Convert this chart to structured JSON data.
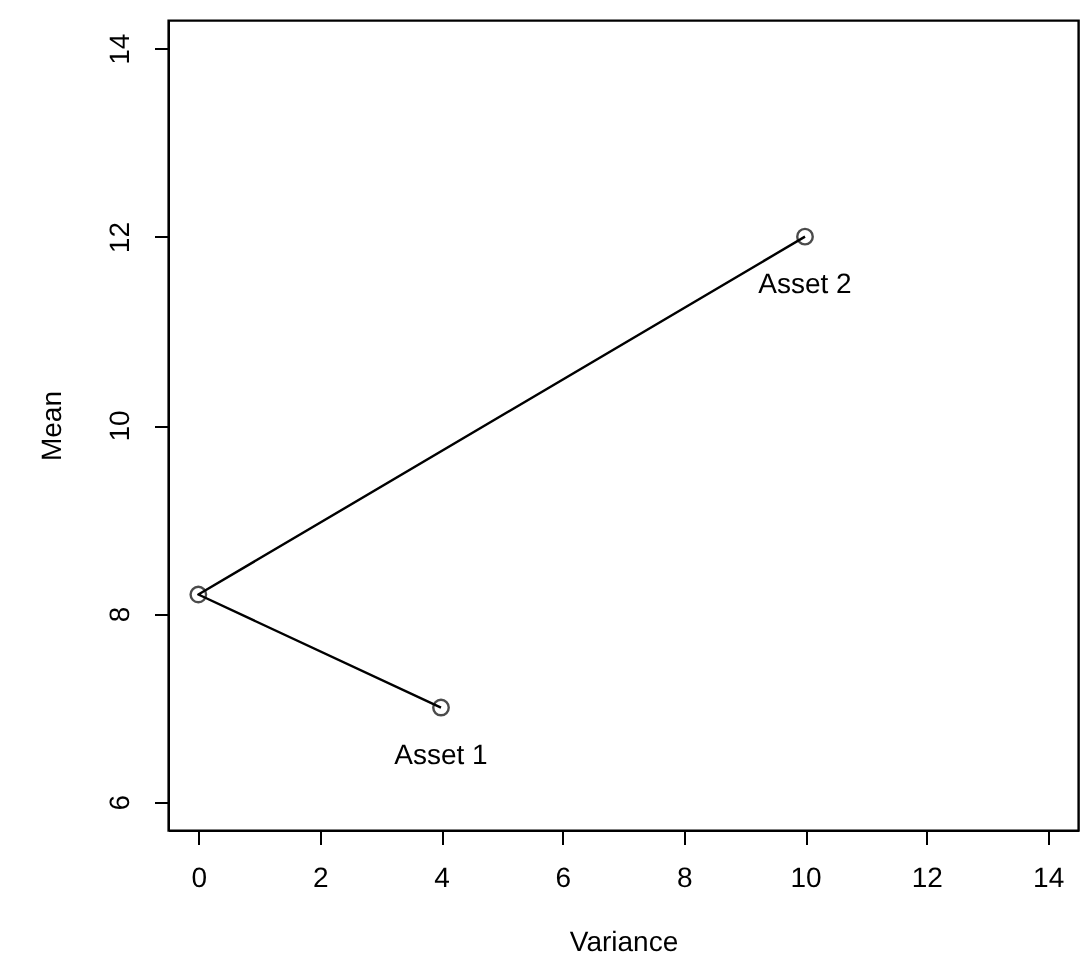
{
  "chart_data": {
    "type": "line",
    "xlabel": "Variance",
    "ylabel": "Mean",
    "x": [
      4,
      0,
      10
    ],
    "values": [
      7,
      8.2,
      12
    ],
    "color": "#000000",
    "marker": "circle",
    "line_style": "solid",
    "xlim": [
      -0.5,
      14.5
    ],
    "ylim": [
      5.7,
      14.3
    ],
    "xticks": [
      0,
      2,
      4,
      6,
      8,
      10,
      12,
      14
    ],
    "yticks": [
      6,
      8,
      10,
      12,
      14
    ],
    "grid": false,
    "annotations": [
      {
        "text": "Asset 1",
        "x": 4,
        "y": 7
      },
      {
        "text": "Asset 2",
        "x": 10,
        "y": 12
      }
    ]
  }
}
